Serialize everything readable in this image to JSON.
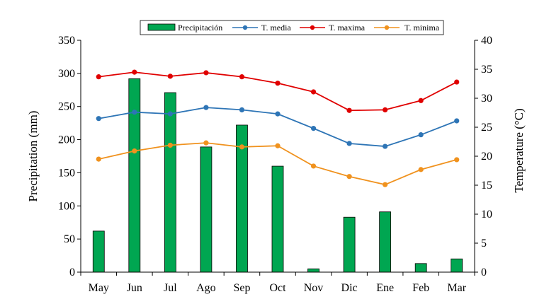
{
  "chart_data": {
    "type": "bar+line",
    "categories": [
      "May",
      "Jun",
      "Jul",
      "Ago",
      "Sep",
      "Oct",
      "Nov",
      "Dic",
      "Ene",
      "Feb",
      "Mar"
    ],
    "bar_series": {
      "name": "Precipitación",
      "axis": "left",
      "color": "#00a651",
      "values": [
        62,
        292,
        271,
        189,
        222,
        160,
        5,
        83,
        91,
        13,
        20
      ]
    },
    "line_series": [
      {
        "name": "T. media",
        "axis": "right",
        "color": "#2e75b6",
        "values": [
          26.5,
          27.6,
          27.3,
          28.4,
          28.0,
          27.3,
          24.8,
          22.2,
          21.7,
          23.7,
          26.1
        ]
      },
      {
        "name": "T. maxima",
        "axis": "right",
        "color": "#e00000",
        "values": [
          33.7,
          34.5,
          33.8,
          34.4,
          33.7,
          32.6,
          31.1,
          27.9,
          28.0,
          29.6,
          32.8
        ]
      },
      {
        "name": "T. minima",
        "axis": "right",
        "color": "#f0921e",
        "values": [
          19.5,
          20.9,
          21.9,
          22.3,
          21.6,
          21.8,
          18.3,
          16.5,
          15.1,
          17.7,
          19.4
        ]
      }
    ],
    "left_axis": {
      "label": "Precipitation (mm)",
      "ylim": [
        0,
        350
      ],
      "ticks": [
        0,
        50,
        100,
        150,
        200,
        250,
        300,
        350
      ]
    },
    "right_axis": {
      "label": "Temperature (°C)",
      "ylim": [
        0,
        40
      ],
      "ticks": [
        0,
        5,
        10,
        15,
        20,
        25,
        30,
        35,
        40
      ]
    },
    "legend_position": "top-center",
    "grid": false
  }
}
